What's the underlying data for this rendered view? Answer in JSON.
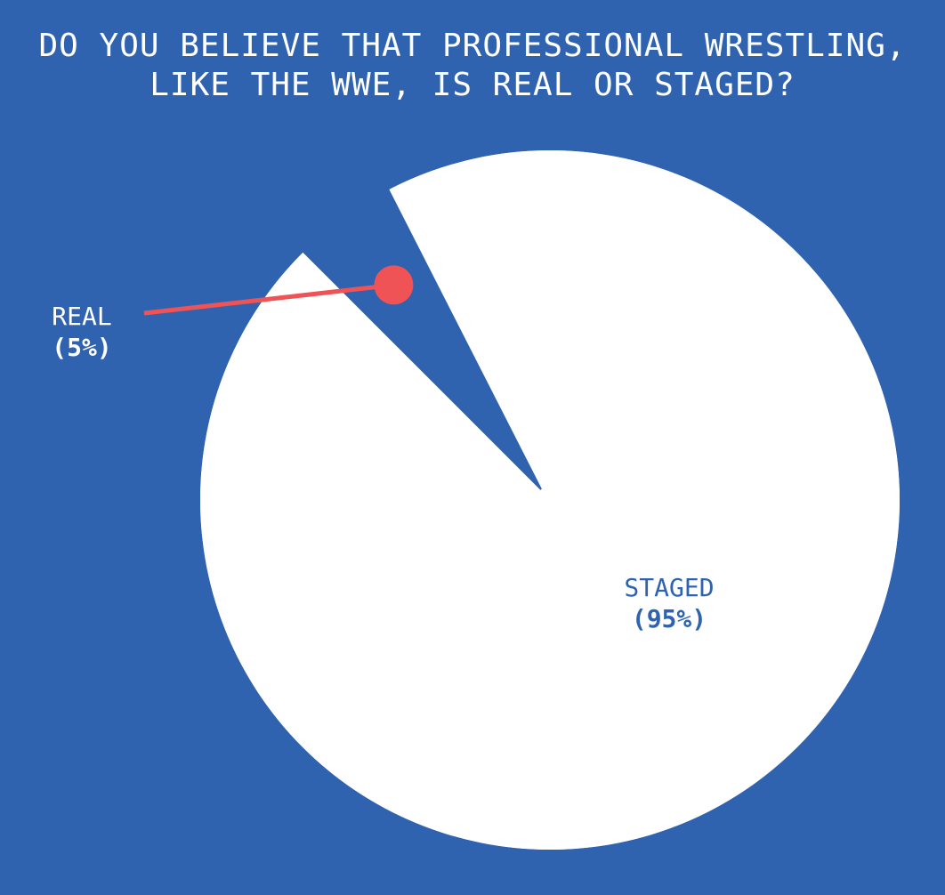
{
  "colors": {
    "background": "#2f63b0",
    "staged": "#ffffff",
    "real": "#2f63b0",
    "pointer": "#ef5356",
    "title_text": "#ffffff",
    "staged_label_text": "#2f63b0",
    "real_label_text": "#ffffff"
  },
  "chart_data": {
    "type": "pie",
    "title_lines": [
      "DO YOU BELIEVE THAT PROFESSIONAL WRESTLING,",
      "LIKE THE WWE, IS REAL OR STAGED?"
    ],
    "slices": [
      {
        "label": "REAL",
        "value": 5,
        "value_label": "(5%)"
      },
      {
        "label": "STAGED",
        "value": 95,
        "value_label": "(95%)"
      }
    ],
    "start_angle_deg": -45,
    "direction": "clockwise"
  }
}
